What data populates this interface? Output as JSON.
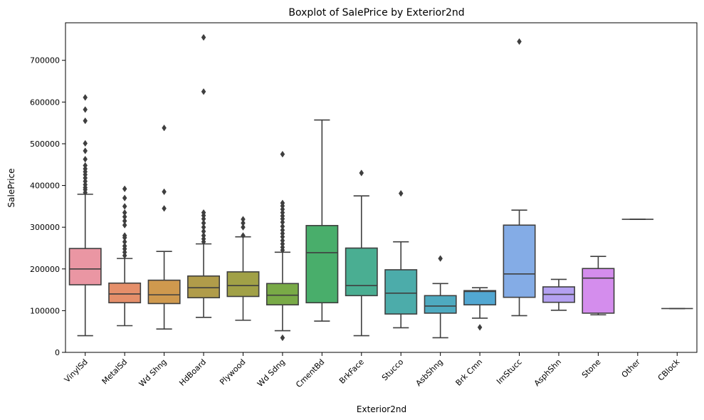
{
  "chart_data": {
    "type": "boxplot",
    "title": "Boxplot of SalePrice by Exterior2nd",
    "xlabel": "Exterior2nd",
    "ylabel": "SalePrice",
    "ylim": [
      0,
      790000
    ],
    "yticks": [
      0,
      100000,
      200000,
      300000,
      400000,
      500000,
      600000,
      700000
    ],
    "ytick_labels": [
      "0",
      "100000",
      "200000",
      "300000",
      "400000",
      "500000",
      "600000",
      "700000"
    ],
    "grid": false,
    "categories": [
      "VinylSd",
      "MetalSd",
      "Wd Shng",
      "HdBoard",
      "Plywood",
      "Wd Sdng",
      "CmentBd",
      "BrkFace",
      "Stucco",
      "AsbShng",
      "Brk Cmn",
      "ImStucc",
      "AsphShn",
      "Stone",
      "Other",
      "CBlock"
    ],
    "colors": [
      "#ea96a3",
      "#e58f6a",
      "#cf994e",
      "#b09c4a",
      "#a1a147",
      "#79aa47",
      "#49ae6b",
      "#4aae92",
      "#4cacaa",
      "#4eaac0",
      "#52a7d2",
      "#84ace6",
      "#b4a1f1",
      "#d48ded",
      "#e586d0",
      "#ec8db9"
    ],
    "boxes": [
      {
        "whislo": 40000,
        "q1": 162000,
        "med": 200000,
        "q3": 249000,
        "whishi": 379000,
        "fliers": [
          383000,
          390000,
          395000,
          402000,
          410000,
          418000,
          426000,
          433000,
          440000,
          448000,
          463000,
          483000,
          501000,
          555000,
          582000,
          611000
        ]
      },
      {
        "whislo": 64000,
        "q1": 119000,
        "med": 140000,
        "q3": 166000,
        "whishi": 225000,
        "fliers": [
          232000,
          240000,
          248000,
          255000,
          265000,
          275000,
          280000,
          305000,
          315000,
          325000,
          335000,
          350000,
          370000,
          392000
        ]
      },
      {
        "whislo": 56000,
        "q1": 117000,
        "med": 138000,
        "q3": 173000,
        "whishi": 242000,
        "fliers": [
          345000,
          385000,
          538000
        ]
      },
      {
        "whislo": 84000,
        "q1": 131000,
        "med": 155000,
        "q3": 183000,
        "whishi": 260000,
        "fliers": [
          265000,
          272000,
          280000,
          290000,
          300000,
          310000,
          320000,
          328000,
          335000,
          625000,
          755000
        ]
      },
      {
        "whislo": 77000,
        "q1": 134000,
        "med": 160000,
        "q3": 193000,
        "whishi": 277000,
        "fliers": [
          280000,
          300000,
          310000,
          319000
        ]
      },
      {
        "whislo": 52000,
        "q1": 114000,
        "med": 137000,
        "q3": 165000,
        "whishi": 240000,
        "fliers": [
          35000,
          245000,
          252000,
          260000,
          268000,
          277000,
          285000,
          293000,
          302000,
          312000,
          320000,
          327000,
          335000,
          343000,
          351000,
          358000,
          475000
        ]
      },
      {
        "whislo": 75000,
        "q1": 119000,
        "med": 239000,
        "q3": 304000,
        "whishi": 557000,
        "fliers": []
      },
      {
        "whislo": 40000,
        "q1": 136000,
        "med": 160000,
        "q3": 250000,
        "whishi": 375000,
        "fliers": [
          430000
        ]
      },
      {
        "whislo": 59000,
        "q1": 92000,
        "med": 142000,
        "q3": 198000,
        "whishi": 265000,
        "fliers": [
          381000
        ]
      },
      {
        "whislo": 35000,
        "q1": 94000,
        "med": 111000,
        "q3": 136000,
        "whishi": 165000,
        "fliers": [
          225000
        ]
      },
      {
        "whislo": 82000,
        "q1": 114000,
        "med": 146000,
        "q3": 148000,
        "whishi": 155000,
        "fliers": [
          60000
        ]
      },
      {
        "whislo": 88000,
        "q1": 132000,
        "med": 188000,
        "q3": 305000,
        "whishi": 341000,
        "fliers": [
          745000
        ]
      },
      {
        "whislo": 101000,
        "q1": 120000,
        "med": 139000,
        "q3": 157000,
        "whishi": 175000,
        "fliers": []
      },
      {
        "whislo": 90000,
        "q1": 94000,
        "med": 178000,
        "q3": 201000,
        "whishi": 230000,
        "fliers": []
      },
      {
        "whislo": 319000,
        "q1": 319000,
        "med": 319000,
        "q3": 319000,
        "whishi": 319000,
        "fliers": []
      },
      {
        "whislo": 105000,
        "q1": 105000,
        "med": 105000,
        "q3": 105000,
        "whishi": 105000,
        "fliers": []
      }
    ]
  }
}
